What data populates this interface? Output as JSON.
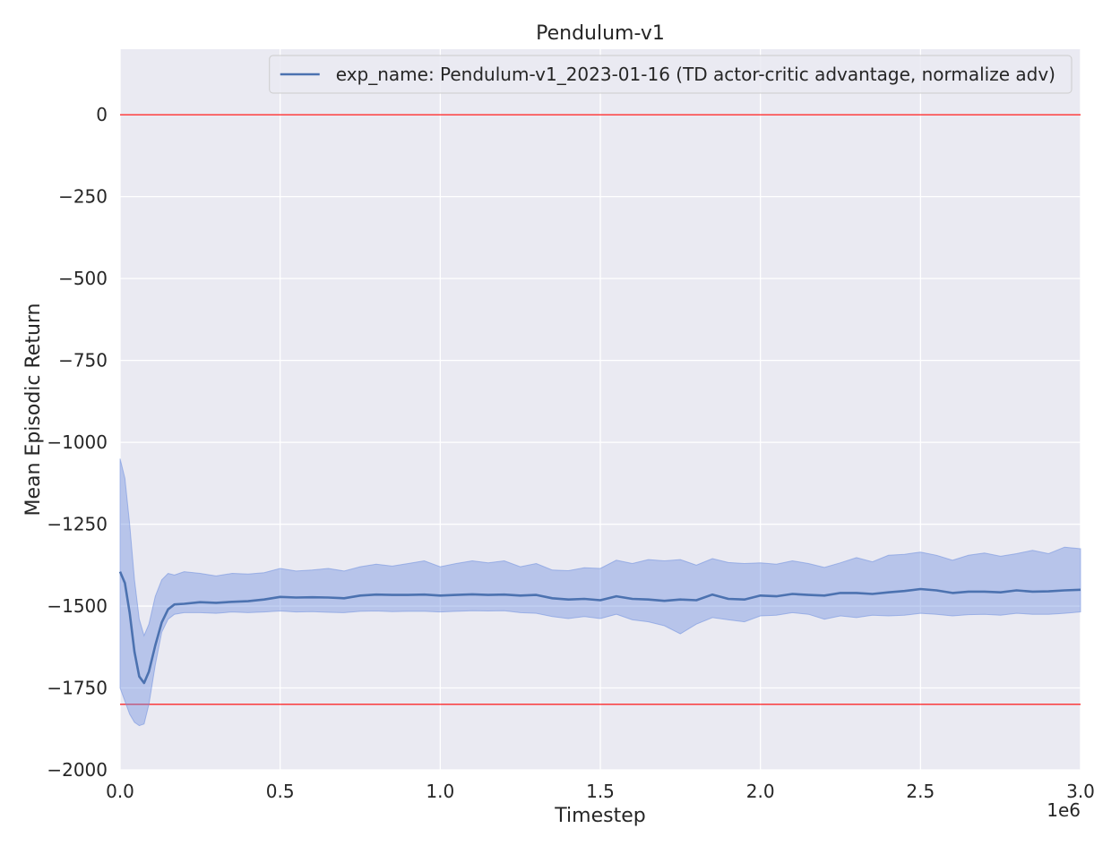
{
  "chart_data": {
    "type": "line",
    "title": "Pendulum-v1",
    "xlabel": "Timestep",
    "ylabel": "Mean Episodic Return",
    "x_offset_label": "1e6",
    "xlim": [
      0,
      3000000
    ],
    "ylim": [
      -2000,
      200
    ],
    "x_ticks": [
      0,
      500000,
      1000000,
      1500000,
      2000000,
      2500000,
      3000000
    ],
    "x_tick_labels": [
      "0.0",
      "0.5",
      "1.0",
      "1.5",
      "2.0",
      "2.5",
      "3.0"
    ],
    "y_ticks": [
      0,
      -250,
      -500,
      -750,
      -1000,
      -1250,
      -1500,
      -1750,
      -2000
    ],
    "y_tick_labels": [
      "0",
      "−250",
      "−500",
      "−750",
      "−1000",
      "−1250",
      "−1500",
      "−1750",
      "−2000"
    ],
    "grid": true,
    "legend_position": "top-right",
    "reference_lines": [
      {
        "y": 0,
        "color": "#ff0000"
      },
      {
        "y": -1800,
        "color": "#ff0000"
      }
    ],
    "colors": {
      "background": "#eaeaf2",
      "grid": "#ffffff",
      "line": "#4c72b0",
      "band": "#6f8fdf",
      "reference": "#ff0000"
    },
    "series": [
      {
        "name": "exp_name: Pendulum-v1_2023-01-16 (TD actor-critic advantage, normalize adv)",
        "x": [
          0,
          15000,
          30000,
          45000,
          60000,
          75000,
          90000,
          110000,
          130000,
          150000,
          170000,
          200000,
          250000,
          300000,
          350000,
          400000,
          450000,
          500000,
          550000,
          600000,
          650000,
          700000,
          750000,
          800000,
          850000,
          900000,
          950000,
          1000000,
          1050000,
          1100000,
          1150000,
          1200000,
          1250000,
          1300000,
          1350000,
          1400000,
          1450000,
          1500000,
          1550000,
          1600000,
          1650000,
          1700000,
          1750000,
          1800000,
          1850000,
          1900000,
          1950000,
          2000000,
          2050000,
          2100000,
          2150000,
          2200000,
          2250000,
          2300000,
          2350000,
          2400000,
          2450000,
          2500000,
          2550000,
          2600000,
          2650000,
          2700000,
          2750000,
          2800000,
          2850000,
          2900000,
          2950000,
          3000000
        ],
        "y": [
          -1395,
          -1430,
          -1520,
          -1640,
          -1715,
          -1735,
          -1700,
          -1620,
          -1550,
          -1510,
          -1495,
          -1493,
          -1488,
          -1490,
          -1487,
          -1485,
          -1480,
          -1472,
          -1474,
          -1473,
          -1474,
          -1476,
          -1468,
          -1465,
          -1466,
          -1466,
          -1465,
          -1468,
          -1466,
          -1464,
          -1466,
          -1465,
          -1468,
          -1466,
          -1476,
          -1480,
          -1478,
          -1482,
          -1470,
          -1478,
          -1480,
          -1484,
          -1480,
          -1482,
          -1465,
          -1478,
          -1480,
          -1468,
          -1470,
          -1463,
          -1466,
          -1468,
          -1460,
          -1460,
          -1463,
          -1458,
          -1454,
          -1448,
          -1452,
          -1460,
          -1456,
          -1456,
          -1458,
          -1452,
          -1456,
          -1455,
          -1452,
          -1450
        ],
        "lower": [
          -1750,
          -1790,
          -1830,
          -1855,
          -1865,
          -1860,
          -1800,
          -1680,
          -1580,
          -1540,
          -1525,
          -1520,
          -1520,
          -1522,
          -1518,
          -1520,
          -1518,
          -1515,
          -1518,
          -1517,
          -1519,
          -1520,
          -1516,
          -1515,
          -1517,
          -1516,
          -1516,
          -1518,
          -1516,
          -1514,
          -1515,
          -1514,
          -1520,
          -1522,
          -1532,
          -1538,
          -1532,
          -1538,
          -1525,
          -1542,
          -1548,
          -1560,
          -1585,
          -1555,
          -1535,
          -1542,
          -1548,
          -1530,
          -1528,
          -1520,
          -1525,
          -1540,
          -1530,
          -1535,
          -1528,
          -1530,
          -1528,
          -1522,
          -1525,
          -1530,
          -1526,
          -1525,
          -1528,
          -1522,
          -1525,
          -1525,
          -1522,
          -1518
        ],
        "upper": [
          -1050,
          -1110,
          -1250,
          -1420,
          -1540,
          -1590,
          -1555,
          -1470,
          -1420,
          -1400,
          -1405,
          -1395,
          -1400,
          -1408,
          -1400,
          -1402,
          -1398,
          -1385,
          -1393,
          -1390,
          -1385,
          -1393,
          -1380,
          -1372,
          -1378,
          -1370,
          -1362,
          -1380,
          -1370,
          -1362,
          -1368,
          -1362,
          -1380,
          -1370,
          -1390,
          -1392,
          -1383,
          -1385,
          -1360,
          -1370,
          -1358,
          -1362,
          -1358,
          -1375,
          -1355,
          -1367,
          -1370,
          -1368,
          -1372,
          -1362,
          -1370,
          -1382,
          -1368,
          -1352,
          -1365,
          -1345,
          -1342,
          -1335,
          -1345,
          -1360,
          -1345,
          -1338,
          -1348,
          -1340,
          -1330,
          -1340,
          -1320,
          -1325
        ]
      }
    ]
  }
}
